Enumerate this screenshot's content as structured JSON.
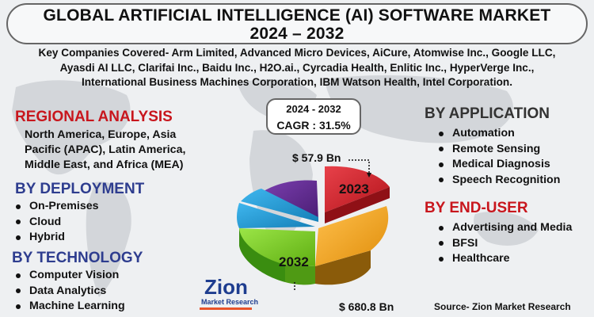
{
  "title": {
    "line1": "GLOBAL ARTIFICIAL INTELLIGENCE (AI) SOFTWARE MARKET",
    "line2": "2024 – 2032"
  },
  "companies": {
    "line1": "Key Companies Covered- Arm Limited, Advanced Micro Devices, AiCure, Atomwise Inc., Google LLC,",
    "line2": "Ayasdi AI LLC, Clarifai Inc., Baidu Inc., H2O.ai., Cyrcadia Health, Enlitic Inc., HyperVerge Inc.,",
    "line3": "International Business Machines Corporation, IBM Watson Health, Intel Corporation."
  },
  "regional": {
    "heading": "REGIONAL ANALYSIS",
    "line1": "North America, Europe, Asia",
    "line2": "Pacific (APAC), Latin America,",
    "line3": "Middle East, and Africa (MEA)"
  },
  "deployment": {
    "heading": "BY DEPLOYMENT",
    "items": [
      "On-Premises",
      "Cloud",
      "Hybrid"
    ]
  },
  "technology": {
    "heading": "BY TECHNOLOGY",
    "items": [
      "Computer Vision",
      "Data Analytics",
      "Machine Learning"
    ]
  },
  "application": {
    "heading": "BY APPLICATION",
    "items": [
      "Automation",
      "Remote Sensing",
      "Medical Diagnosis",
      "Speech Recognition"
    ]
  },
  "end_user": {
    "heading": "BY END-USER",
    "items": [
      "Advertising and Media",
      "BFSI",
      "Healthcare"
    ]
  },
  "cagr": {
    "years": "2024 - 2032",
    "value": "CAGR : 31.5%"
  },
  "pie": {
    "label_2023": "2023",
    "label_2032": "2032",
    "value_2023": "$ 57.9 Bn",
    "value_2032": "$ 680.8 Bn",
    "colors": {
      "red": "#d4232b",
      "orange": "#f5a623",
      "purple": "#5e2a8a",
      "blue": "#1f9bd8",
      "green": "#7ed321"
    }
  },
  "logo": {
    "name": "Zion",
    "sub": "Market Research"
  },
  "source": "Source- Zion Market Research"
}
